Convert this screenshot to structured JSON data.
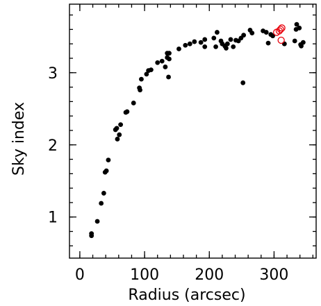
{
  "chart_data": {
    "type": "scatter",
    "title": "",
    "xlabel": "Radius (arcsec)",
    "ylabel": "Sky index",
    "xlim": [
      -16,
      365
    ],
    "ylim": [
      0.43,
      3.95
    ],
    "x_ticks": [
      0,
      100,
      200,
      300
    ],
    "y_ticks": [
      1,
      2,
      3
    ],
    "x_minor_step": 20,
    "y_minor_step": 0.2,
    "grid": false,
    "legend": "none",
    "colors": {
      "filled": "#000000",
      "open": "#e8000b"
    },
    "series": [
      {
        "marker": "filled-circle",
        "color": "#000000",
        "points": [
          [
            18,
            0.77
          ],
          [
            18,
            0.74
          ],
          [
            27,
            0.94
          ],
          [
            33,
            1.19
          ],
          [
            37,
            1.33
          ],
          [
            39,
            1.62
          ],
          [
            41,
            1.64
          ],
          [
            44,
            1.79
          ],
          [
            55,
            2.21
          ],
          [
            57,
            2.23
          ],
          [
            58,
            2.08
          ],
          [
            61,
            2.14
          ],
          [
            63,
            2.28
          ],
          [
            71,
            2.45
          ],
          [
            73,
            2.46
          ],
          [
            83,
            2.58
          ],
          [
            92,
            2.79
          ],
          [
            93,
            2.76
          ],
          [
            95,
            2.91
          ],
          [
            103,
            2.98
          ],
          [
            106,
            3.03
          ],
          [
            110,
            3.04
          ],
          [
            120,
            3.14
          ],
          [
            127,
            3.16
          ],
          [
            132,
            3.08
          ],
          [
            135,
            3.21
          ],
          [
            135,
            3.27
          ],
          [
            138,
            3.27
          ],
          [
            137,
            2.94
          ],
          [
            138,
            3.19
          ],
          [
            153,
            3.33
          ],
          [
            163,
            3.38
          ],
          [
            170,
            3.4
          ],
          [
            177,
            3.43
          ],
          [
            187,
            3.42
          ],
          [
            193,
            3.46
          ],
          [
            193,
            3.36
          ],
          [
            207,
            3.48
          ],
          [
            210,
            3.36
          ],
          [
            212,
            3.56
          ],
          [
            218,
            3.44
          ],
          [
            220,
            3.4
          ],
          [
            224,
            3.37
          ],
          [
            226,
            3.34
          ],
          [
            228,
            3.4
          ],
          [
            233,
            3.46
          ],
          [
            237,
            3.36
          ],
          [
            241,
            3.45
          ],
          [
            245,
            3.44
          ],
          [
            249,
            3.48
          ],
          [
            252,
            2.86
          ],
          [
            253,
            3.52
          ],
          [
            263,
            3.59
          ],
          [
            266,
            3.55
          ],
          [
            283,
            3.58
          ],
          [
            288,
            3.56
          ],
          [
            291,
            3.41
          ],
          [
            295,
            3.53
          ],
          [
            298,
            3.51
          ],
          [
            316,
            3.4
          ],
          [
            332,
            3.44
          ],
          [
            334,
            3.6
          ],
          [
            335,
            3.67
          ],
          [
            339,
            3.62
          ],
          [
            341,
            3.39
          ],
          [
            342,
            3.37
          ],
          [
            345,
            3.42
          ]
        ]
      },
      {
        "marker": "open-circle",
        "color": "#e8000b",
        "points": [
          [
            304,
            3.56
          ],
          [
            308,
            3.58
          ],
          [
            312,
            3.62
          ],
          [
            310,
            3.6
          ],
          [
            311,
            3.45
          ]
        ]
      }
    ]
  }
}
